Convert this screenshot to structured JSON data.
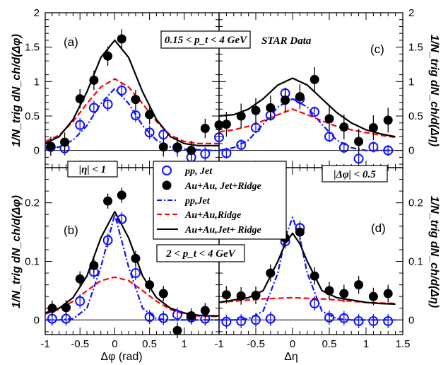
{
  "labels": {
    "panel_a": "(a)",
    "panel_b": "(b)",
    "panel_c": "(c)",
    "panel_d": "(d)",
    "pt_range_top": "0.15 < p_t < 4 GeV",
    "pt_range_bottom": "2 < p_t < 4 GeV",
    "star_data": "STAR Data",
    "eta_cut": "|η| < 1",
    "phi_cut": "|Δφ| < 0.5",
    "ylabel_left": "1/N_trig dN_ch/d(Δφ)",
    "ylabel_right": "1/N_trig dN_ch/d(Δη)",
    "xlabel_left": "Δφ (rad)",
    "xlabel_right": "Δη"
  },
  "legend": [
    {
      "key": "pp-jet-data",
      "label": "pp, Jet",
      "marker": "open-circle",
      "color": "#1010ff"
    },
    {
      "key": "auau-jetridge-data",
      "label": "Au+Au, Jet+Ridge",
      "marker": "filled-circle",
      "color": "#000000"
    },
    {
      "key": "pp-jet-line",
      "label": "pp,Jet",
      "line": "dash-dot",
      "color": "#1010ff"
    },
    {
      "key": "auau-ridge-line",
      "label": "Au+Au,Ridge",
      "line": "dashed",
      "color": "#ff0000"
    },
    {
      "key": "auau-jetridge-line",
      "label": "Au+Au,Jet+ Ridge",
      "line": "solid",
      "color": "#000000"
    }
  ],
  "colors": {
    "pp": "#1010ff",
    "auau": "#000000",
    "ridge": "#ff0000"
  },
  "chart_data": [
    {
      "id": "a",
      "type": "scatter",
      "xlim": [
        -1,
        1.5
      ],
      "ylim": [
        -0.25,
        2
      ],
      "yticks": [
        "0",
        "0.5",
        "1",
        "1.5",
        "2"
      ],
      "ytick_values": [
        0,
        0.5,
        1,
        1.5,
        2
      ],
      "xticks": [],
      "xtick_values": [],
      "series": [
        {
          "role": "pp-jet-data",
          "x": [
            -0.92,
            -0.72,
            -0.5,
            -0.3,
            -0.1,
            0.1,
            0.3,
            0.5,
            0.7,
            0.9,
            1.1,
            1.3,
            1.5
          ],
          "y": [
            0.05,
            0.03,
            0.37,
            0.62,
            0.67,
            0.87,
            0.51,
            0.26,
            0.23,
            0.04,
            -0.1,
            -0.05,
            0.19
          ],
          "err": 0.1
        },
        {
          "role": "auau-jetridge-data",
          "x": [
            -0.92,
            -0.72,
            -0.5,
            -0.3,
            -0.1,
            0.1,
            0.3,
            0.5,
            0.7,
            0.9,
            1.1,
            1.3,
            1.5
          ],
          "y": [
            0.06,
            0.12,
            0.75,
            1.02,
            1.37,
            1.62,
            0.74,
            0.52,
            0.05,
            0.05,
            0.0,
            0.32,
            0.37
          ],
          "err": 0.14
        },
        {
          "role": "pp-jet-line",
          "x": [
            -1,
            -0.8,
            -0.6,
            -0.4,
            -0.2,
            0,
            0.2,
            0.4,
            0.6,
            0.8,
            1,
            1.2,
            1.4,
            1.5
          ],
          "y": [
            0.02,
            0.05,
            0.15,
            0.36,
            0.68,
            0.9,
            0.68,
            0.36,
            0.15,
            0.05,
            0.02,
            0.01,
            0.0,
            0.0
          ]
        },
        {
          "role": "auau-ridge-line",
          "x": [
            -1,
            -0.8,
            -0.6,
            -0.4,
            -0.2,
            0,
            0.2,
            0.4,
            0.6,
            0.8,
            1,
            1.2,
            1.4,
            1.5
          ],
          "y": [
            0.13,
            0.22,
            0.42,
            0.68,
            0.92,
            1.04,
            0.92,
            0.68,
            0.42,
            0.22,
            0.13,
            0.1,
            0.1,
            0.1
          ]
        },
        {
          "role": "auau-jetridge-line",
          "x": [
            -1,
            -0.8,
            -0.6,
            -0.4,
            -0.2,
            0,
            0.2,
            0.4,
            0.6,
            0.8,
            1,
            1.2,
            1.4,
            1.5
          ],
          "y": [
            0.1,
            0.2,
            0.45,
            0.85,
            1.35,
            1.6,
            1.35,
            0.85,
            0.45,
            0.2,
            0.1,
            0.07,
            0.07,
            0.07
          ]
        }
      ]
    },
    {
      "id": "c",
      "type": "scatter",
      "xlim": [
        -1,
        1.5
      ],
      "ylim": [
        -0.25,
        2
      ],
      "yticks": [
        "0",
        "0.5",
        "1",
        "1.5",
        "2"
      ],
      "ytick_values": [
        0,
        0.5,
        1,
        1.5,
        2
      ],
      "xticks": [],
      "xtick_values": [],
      "series": [
        {
          "role": "pp-jet-data",
          "x": [
            -0.9,
            -0.7,
            -0.5,
            -0.3,
            -0.1,
            0.1,
            0.3,
            0.5,
            0.7,
            0.9,
            1.1,
            1.3
          ],
          "y": [
            -0.04,
            0.08,
            0.33,
            0.51,
            0.83,
            0.75,
            0.56,
            0.2,
            0.04,
            -0.12,
            0.05,
            0.0
          ],
          "err": 0.08
        },
        {
          "role": "auau-jetridge-data",
          "x": [
            -0.9,
            -0.7,
            -0.5,
            -0.3,
            -0.1,
            0.1,
            0.3,
            0.5,
            0.7,
            0.9,
            1.1,
            1.3
          ],
          "y": [
            0.38,
            0.5,
            0.58,
            0.62,
            0.73,
            0.78,
            1.03,
            0.46,
            0.34,
            0.13,
            0.33,
            0.44
          ],
          "err": 0.18
        },
        {
          "role": "pp-jet-line",
          "x": [
            -1,
            -0.8,
            -0.6,
            -0.4,
            -0.2,
            0,
            0.2,
            0.4,
            0.6,
            0.8,
            1,
            1.2,
            1.4
          ],
          "y": [
            0.0,
            0.04,
            0.15,
            0.38,
            0.63,
            0.75,
            0.63,
            0.38,
            0.15,
            0.04,
            0.0,
            0.0,
            0.0
          ]
        },
        {
          "role": "auau-ridge-line",
          "x": [
            -1,
            -0.8,
            -0.6,
            -0.4,
            -0.2,
            0,
            0.2,
            0.4,
            0.6,
            0.8,
            1,
            1.2,
            1.4
          ],
          "y": [
            0.27,
            0.3,
            0.35,
            0.43,
            0.52,
            0.6,
            0.52,
            0.43,
            0.35,
            0.3,
            0.26,
            0.22,
            0.19
          ]
        },
        {
          "role": "auau-jetridge-line",
          "x": [
            -1,
            -0.8,
            -0.6,
            -0.4,
            -0.2,
            0,
            0.2,
            0.4,
            0.6,
            0.8,
            1,
            1.2,
            1.4
          ],
          "y": [
            0.5,
            0.52,
            0.6,
            0.75,
            0.95,
            1.05,
            0.95,
            0.75,
            0.55,
            0.4,
            0.3,
            0.24,
            0.2
          ]
        }
      ]
    },
    {
      "id": "b",
      "type": "scatter",
      "xlim": [
        -1,
        1.5
      ],
      "ylim": [
        -0.025,
        0.26
      ],
      "yticks": [
        "0",
        "0.1",
        "0.2"
      ],
      "ytick_values": [
        0,
        0.1,
        0.2
      ],
      "xticks": [
        "-1",
        "-0.5",
        "0",
        "0.5",
        "1"
      ],
      "xtick_values": [
        -1,
        -0.5,
        0,
        0.5,
        1
      ],
      "series": [
        {
          "role": "pp-jet-data",
          "x": [
            -0.9,
            -0.7,
            -0.5,
            -0.3,
            -0.1,
            0.1,
            0.3,
            0.5,
            0.7,
            0.9,
            1.1,
            1.3
          ],
          "y": [
            0.002,
            0.002,
            0.032,
            0.082,
            0.136,
            0.172,
            0.08,
            0.005,
            0.003,
            0.009,
            0.004,
            0.002
          ],
          "err": 0.012
        },
        {
          "role": "auau-jetridge-data",
          "x": [
            -0.9,
            -0.7,
            -0.5,
            -0.3,
            -0.1,
            0.1,
            0.3,
            0.5,
            0.7,
            0.9,
            1.1,
            1.3
          ],
          "y": [
            0.02,
            0.021,
            0.07,
            0.093,
            0.203,
            0.213,
            0.105,
            0.06,
            0.045,
            -0.018,
            0.007,
            0.016
          ],
          "err": 0.013
        },
        {
          "role": "pp-jet-line",
          "x": [
            -1,
            -0.8,
            -0.6,
            -0.4,
            -0.2,
            0,
            0.2,
            0.4,
            0.6,
            0.8,
            1,
            1.2,
            1.4,
            1.5
          ],
          "y": [
            0.0,
            0.0,
            0.002,
            0.02,
            0.09,
            0.18,
            0.09,
            0.02,
            0.002,
            0.0,
            0.0,
            0.0,
            0.0,
            0.0
          ]
        },
        {
          "role": "auau-ridge-line",
          "x": [
            -1,
            -0.8,
            -0.6,
            -0.4,
            -0.2,
            0,
            0.2,
            0.4,
            0.6,
            0.8,
            1,
            1.2,
            1.4,
            1.5
          ],
          "y": [
            0.01,
            0.018,
            0.032,
            0.05,
            0.067,
            0.073,
            0.067,
            0.05,
            0.032,
            0.018,
            0.01,
            0.007,
            0.006,
            0.006
          ]
        },
        {
          "role": "auau-jetridge-line",
          "x": [
            -1,
            -0.8,
            -0.6,
            -0.4,
            -0.2,
            0,
            0.2,
            0.4,
            0.6,
            0.8,
            1,
            1.2,
            1.4,
            1.5
          ],
          "y": [
            0.012,
            0.02,
            0.038,
            0.075,
            0.14,
            0.185,
            0.14,
            0.075,
            0.038,
            0.02,
            0.012,
            0.008,
            0.007,
            0.007
          ]
        }
      ]
    },
    {
      "id": "d",
      "type": "scatter",
      "xlim": [
        -1,
        1.5
      ],
      "ylim": [
        -0.025,
        0.26
      ],
      "yticks": [
        "0",
        "0.1",
        "0.2"
      ],
      "ytick_values": [
        0,
        0.1,
        0.2
      ],
      "xticks": [
        "-1",
        "-0.5",
        "0",
        "0.5",
        "1",
        "1.5"
      ],
      "xtick_values": [
        -1,
        -0.5,
        0,
        0.5,
        1,
        1.5
      ],
      "series": [
        {
          "role": "pp-jet-data",
          "x": [
            -0.9,
            -0.7,
            -0.5,
            -0.3,
            -0.1,
            0.1,
            0.3,
            0.5,
            0.7,
            0.9,
            1.1,
            1.3
          ],
          "y": [
            -0.003,
            -0.002,
            0.0,
            0.002,
            0.134,
            0.157,
            0.028,
            0.004,
            0.003,
            -0.002,
            -0.002,
            -0.002
          ],
          "err": 0.012
        },
        {
          "role": "auau-jetridge-data",
          "x": [
            -0.9,
            -0.7,
            -0.5,
            -0.3,
            -0.1,
            0.1,
            0.3,
            0.5,
            0.7,
            0.9,
            1.1,
            1.3
          ],
          "y": [
            0.043,
            0.041,
            0.042,
            0.08,
            0.14,
            0.15,
            0.075,
            0.05,
            0.045,
            0.06,
            0.04,
            0.045
          ],
          "err": 0.015
        },
        {
          "role": "pp-jet-line",
          "x": [
            -1,
            -0.8,
            -0.6,
            -0.4,
            -0.2,
            -0.1,
            0,
            0.1,
            0.2,
            0.4,
            0.6,
            0.8,
            1,
            1.2,
            1.4
          ],
          "y": [
            0.0,
            0.0,
            0.002,
            0.015,
            0.08,
            0.14,
            0.175,
            0.14,
            0.08,
            0.015,
            0.002,
            0.0,
            0.0,
            0.0,
            0.0
          ]
        },
        {
          "role": "auau-ridge-line",
          "x": [
            -1,
            -0.8,
            -0.6,
            -0.4,
            -0.2,
            0,
            0.2,
            0.4,
            0.6,
            0.8,
            1,
            1.2,
            1.4
          ],
          "y": [
            0.03,
            0.032,
            0.034,
            0.036,
            0.037,
            0.038,
            0.037,
            0.036,
            0.034,
            0.032,
            0.03,
            0.029,
            0.028
          ]
        },
        {
          "role": "auau-jetridge-line",
          "x": [
            -1,
            -0.8,
            -0.6,
            -0.4,
            -0.2,
            -0.1,
            0,
            0.1,
            0.2,
            0.4,
            0.6,
            0.8,
            1,
            1.2,
            1.4
          ],
          "y": [
            0.03,
            0.034,
            0.038,
            0.05,
            0.1,
            0.13,
            0.148,
            0.13,
            0.1,
            0.05,
            0.038,
            0.034,
            0.03,
            0.028,
            0.027
          ]
        }
      ]
    }
  ]
}
